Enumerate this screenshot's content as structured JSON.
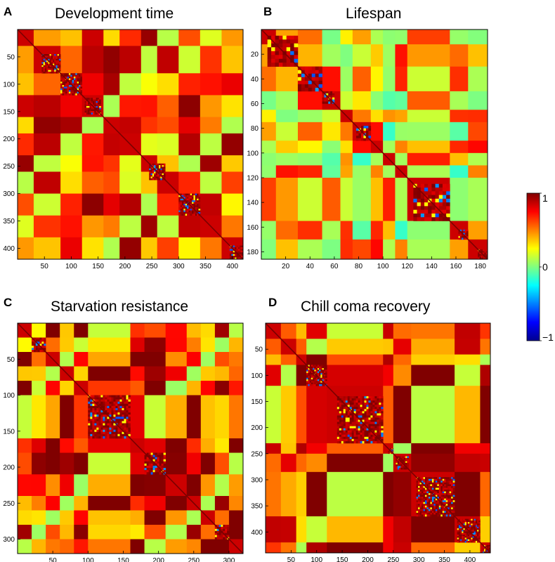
{
  "chart_data": [
    {
      "type": "heatmap",
      "panel": "A",
      "title": "Development time",
      "n": 420,
      "xticks": [
        50,
        100,
        150,
        200,
        250,
        300,
        350,
        400
      ],
      "yticks": [
        50,
        100,
        150,
        200,
        250,
        300,
        350,
        400
      ],
      "clim": [
        -1,
        1
      ],
      "blocks": [
        [
          0,
          30
        ],
        [
          30,
          80
        ],
        [
          80,
          120
        ],
        [
          120,
          160
        ],
        [
          160,
          190
        ],
        [
          190,
          230
        ],
        [
          230,
          260
        ],
        [
          260,
          300
        ],
        [
          300,
          340
        ],
        [
          340,
          380
        ],
        [
          380,
          420
        ]
      ],
      "diag_blocks": [
        [
          45,
          80
        ],
        [
          80,
          120
        ],
        [
          125,
          155
        ],
        [
          245,
          275
        ],
        [
          300,
          340
        ],
        [
          395,
          420
        ]
      ],
      "base_mean": 0.55
    },
    {
      "type": "heatmap",
      "panel": "B",
      "title": "Lifespan",
      "n": 186,
      "xticks": [
        20,
        40,
        60,
        80,
        100,
        120,
        140,
        160,
        180
      ],
      "yticks": [
        20,
        40,
        60,
        80,
        100,
        120,
        140,
        160,
        180
      ],
      "clim": [
        -1,
        1
      ],
      "blocks": [
        [
          0,
          12
        ],
        [
          12,
          30
        ],
        [
          30,
          50
        ],
        [
          50,
          65
        ],
        [
          65,
          75
        ],
        [
          75,
          90
        ],
        [
          90,
          100
        ],
        [
          100,
          110
        ],
        [
          110,
          120
        ],
        [
          120,
          155
        ],
        [
          155,
          170
        ],
        [
          170,
          186
        ]
      ],
      "diag_blocks": [
        [
          5,
          30
        ],
        [
          30,
          50
        ],
        [
          50,
          60
        ],
        [
          78,
          90
        ],
        [
          125,
          155
        ],
        [
          162,
          170
        ],
        [
          178,
          186
        ]
      ],
      "base_mean": 0.3
    },
    {
      "type": "heatmap",
      "panel": "C",
      "title": "Starvation resistance",
      "n": 320,
      "xticks": [
        50,
        100,
        150,
        200,
        250,
        300
      ],
      "yticks": [
        50,
        100,
        150,
        200,
        250,
        300
      ],
      "clim": [
        -1,
        1
      ],
      "blocks": [
        [
          0,
          20
        ],
        [
          20,
          40
        ],
        [
          40,
          60
        ],
        [
          60,
          80
        ],
        [
          80,
          100
        ],
        [
          100,
          160
        ],
        [
          160,
          180
        ],
        [
          180,
          210
        ],
        [
          210,
          240
        ],
        [
          240,
          260
        ],
        [
          260,
          280
        ],
        [
          280,
          300
        ],
        [
          300,
          320
        ]
      ],
      "diag_blocks": [
        [
          20,
          40
        ],
        [
          100,
          160
        ],
        [
          180,
          210
        ],
        [
          280,
          300
        ]
      ],
      "base_mean": 0.7
    },
    {
      "type": "heatmap",
      "panel": "D",
      "title": "Chill coma recovery",
      "n": 440,
      "xticks": [
        50,
        100,
        150,
        200,
        250,
        300,
        350,
        400
      ],
      "yticks": [
        50,
        100,
        150,
        200,
        250,
        300,
        350,
        400
      ],
      "clim": [
        -1,
        1
      ],
      "blocks": [
        [
          0,
          30
        ],
        [
          30,
          60
        ],
        [
          60,
          80
        ],
        [
          80,
          120
        ],
        [
          120,
          230
        ],
        [
          230,
          250
        ],
        [
          250,
          285
        ],
        [
          285,
          370
        ],
        [
          370,
          420
        ],
        [
          420,
          440
        ]
      ],
      "diag_blocks": [
        [
          80,
          120
        ],
        [
          140,
          230
        ],
        [
          240,
          250
        ],
        [
          255,
          280
        ],
        [
          295,
          370
        ],
        [
          375,
          420
        ],
        [
          425,
          440
        ]
      ],
      "base_mean": 0.72
    }
  ],
  "colorbar": {
    "ticks": [
      {
        "value": 1,
        "label": "1"
      },
      {
        "value": 0,
        "label": "0"
      },
      {
        "value": -1,
        "label": "−1"
      }
    ]
  }
}
